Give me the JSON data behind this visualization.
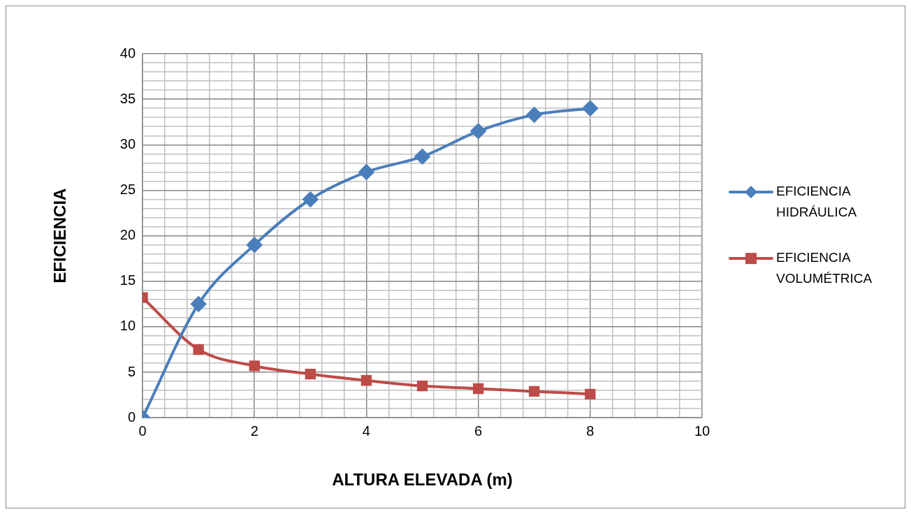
{
  "chart_data": {
    "type": "line",
    "xlabel": "ALTURA ELEVADA (m)",
    "ylabel": "EFICIENCIA",
    "x": [
      0,
      1,
      2,
      3,
      4,
      5,
      6,
      7,
      8
    ],
    "series": [
      {
        "name": "EFICIENCIA HIDRÁULICA",
        "color": "#4a7ebb",
        "marker": "diamond",
        "values": [
          0,
          12.5,
          19,
          24,
          27,
          28.7,
          31.5,
          33.3,
          34
        ]
      },
      {
        "name": "EFICIENCIA VOLUMÉTRICA",
        "color": "#be4b48",
        "marker": "square",
        "values": [
          13.2,
          7.5,
          5.7,
          4.8,
          4.1,
          3.5,
          3.2,
          2.9,
          2.6
        ]
      }
    ],
    "xlim": [
      0,
      10
    ],
    "xticks": [
      0,
      {
        "value": 0.4,
        "label": null
      },
      {
        "value": 0.8,
        "label": null
      },
      {
        "value": 1.2,
        "label": null
      },
      {
        "value": 1.6,
        "label": null
      },
      2,
      {
        "value": 2.4,
        "label": null
      },
      {
        "value": 2.8,
        "label": null
      },
      {
        "value": 3.2,
        "label": null
      },
      {
        "value": 3.6,
        "label": null
      },
      4,
      {
        "value": 4.4,
        "label": null
      },
      {
        "value": 4.8,
        "label": null
      },
      {
        "value": 5.2,
        "label": null
      },
      {
        "value": 5.6,
        "label": null
      },
      6,
      {
        "value": 6.4,
        "label": null
      },
      {
        "value": 6.8,
        "label": null
      },
      {
        "value": 7.2,
        "label": null
      },
      {
        "value": 7.6,
        "label": null
      },
      8,
      {
        "value": 8.4,
        "label": null
      },
      {
        "value": 8.8,
        "label": null
      },
      {
        "value": 9.2,
        "label": null
      },
      {
        "value": 9.6,
        "label": null
      },
      10
    ],
    "ylim": [
      0,
      40
    ],
    "yticks": [
      0,
      {
        "value": 1,
        "label": null
      },
      {
        "value": 2,
        "label": null
      },
      {
        "value": 3,
        "label": null
      },
      {
        "value": 4,
        "label": null
      },
      5,
      {
        "value": 6,
        "label": null
      },
      {
        "value": 7,
        "label": null
      },
      {
        "value": 8,
        "label": null
      },
      {
        "value": 9,
        "label": null
      },
      10,
      {
        "value": 11,
        "label": null
      },
      {
        "value": 12,
        "label": null
      },
      {
        "value": 13,
        "label": null
      },
      {
        "value": 14,
        "label": null
      },
      15,
      {
        "value": 16,
        "label": null
      },
      {
        "value": 17,
        "label": null
      },
      {
        "value": 18,
        "label": null
      },
      {
        "value": 19,
        "label": null
      },
      20,
      {
        "value": 21,
        "label": null
      },
      {
        "value": 22,
        "label": null
      },
      {
        "value": 23,
        "label": null
      },
      {
        "value": 24,
        "label": null
      },
      25,
      {
        "value": 26,
        "label": null
      },
      {
        "value": 27,
        "label": null
      },
      {
        "value": 28,
        "label": null
      },
      {
        "value": 29,
        "label": null
      },
      30,
      {
        "value": 31,
        "label": null
      },
      {
        "value": 32,
        "label": null
      },
      {
        "value": 33,
        "label": null
      },
      {
        "value": 34,
        "label": null
      },
      35,
      {
        "value": 36,
        "label": null
      },
      {
        "value": 37,
        "label": null
      },
      {
        "value": 38,
        "label": null
      },
      {
        "value": 39,
        "label": null
      },
      40
    ],
    "grid": true,
    "legend": "right",
    "line_style": "solid"
  }
}
